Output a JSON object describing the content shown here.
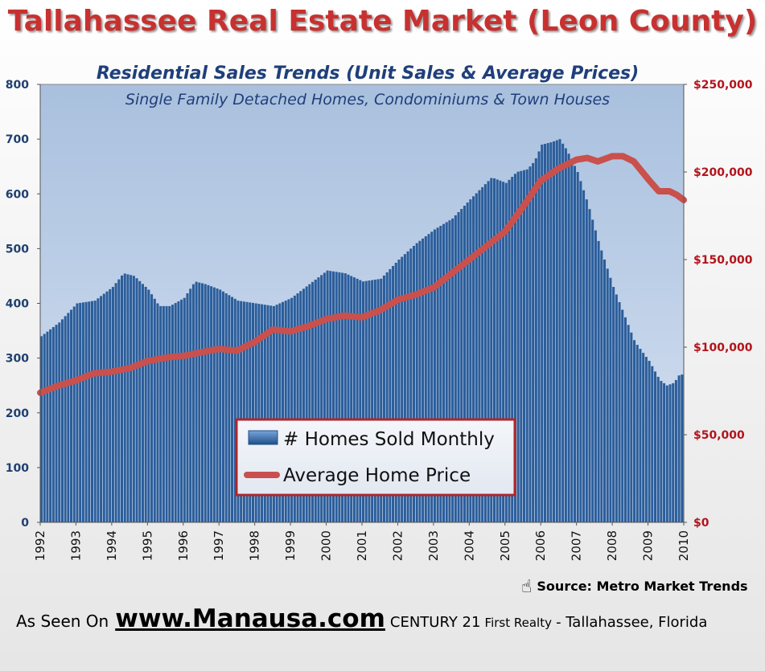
{
  "title": "Tallahassee Real Estate Market (Leon County)",
  "subtitle": "Residential Sales Trends (Unit Sales & Average Prices)",
  "subtitle2": "Single Family Detached Homes, Condominiums & Town Houses",
  "source": "Source:  Metro Market Trends",
  "footer": {
    "as_seen": "As Seen On",
    "site": "www.Manausa.com",
    "brand": "CENTURY 21",
    "brand_small": "First Realty",
    "location": "- Tallahassee,  Florida"
  },
  "colors": {
    "bars": "#2b5d9a",
    "price_line": "#c9504c",
    "left_axis": "#1f3f6e",
    "right_axis": "#b3141c",
    "plot_bg_top": "#a9c0de"
  },
  "chart_data": {
    "type": "bar+line",
    "x_tick_labels": [
      "1992",
      "1993",
      "1994",
      "1995",
      "1996",
      "1997",
      "1998",
      "1999",
      "2000",
      "2001",
      "2002",
      "2003",
      "2004",
      "2005",
      "2006",
      "2007",
      "2008",
      "2009",
      "2010"
    ],
    "left_axis": {
      "ylim": [
        0,
        800
      ],
      "ticks": [
        "0",
        "100",
        "200",
        "300",
        "400",
        "500",
        "600",
        "700",
        "800"
      ]
    },
    "right_axis": {
      "ylim": [
        0,
        250000
      ],
      "ticks": [
        "$0",
        "$50,000",
        "$100,000",
        "$150,000",
        "$200,000",
        "$250,000"
      ]
    },
    "grid": false,
    "legend": {
      "position": "lower-center",
      "entries": [
        "# Homes Sold Monthly",
        "Average Home Price"
      ]
    },
    "series": [
      {
        "name": "# Homes Sold Monthly",
        "axis": "left",
        "kind": "bar",
        "x": [
          1992,
          1992.5,
          1993,
          1993.5,
          1994,
          1994.3,
          1994.6,
          1995,
          1995.3,
          1995.6,
          1996,
          1996.3,
          1996.6,
          1997,
          1997.5,
          1998,
          1998.5,
          1999,
          1999.5,
          2000,
          2000.5,
          2001,
          2001.5,
          2002,
          2002.5,
          2003,
          2003.5,
          2004,
          2004.3,
          2004.6,
          2005,
          2005.3,
          2005.6,
          2005.8,
          2006,
          2006.3,
          2006.5,
          2006.7,
          2007,
          2007.3,
          2007.6,
          2008,
          2008.3,
          2008.6,
          2009,
          2009.3,
          2009.5,
          2009.7,
          2009.85,
          2010
        ],
        "values": [
          340,
          365,
          400,
          405,
          430,
          455,
          450,
          425,
          395,
          395,
          410,
          440,
          435,
          425,
          405,
          400,
          395,
          410,
          435,
          460,
          455,
          440,
          445,
          480,
          510,
          535,
          555,
          590,
          610,
          630,
          620,
          640,
          645,
          660,
          690,
          695,
          700,
          680,
          640,
          580,
          510,
          430,
          380,
          330,
          295,
          260,
          250,
          255,
          270,
          270
        ]
      },
      {
        "name": "Average Home Price",
        "axis": "right",
        "kind": "line",
        "x": [
          1992,
          1992.5,
          1993,
          1993.5,
          1994,
          1994.5,
          1995,
          1995.5,
          1996,
          1996.5,
          1997,
          1997.5,
          1998,
          1998.5,
          1999,
          1999.5,
          2000,
          2000.5,
          2001,
          2001.5,
          2002,
          2002.5,
          2003,
          2003.5,
          2004,
          2004.5,
          2005,
          2005.5,
          2006,
          2006.5,
          2007,
          2007.3,
          2007.6,
          2008,
          2008.3,
          2008.6,
          2009,
          2009.3,
          2009.6,
          2009.8,
          2010
        ],
        "values": [
          74000,
          78000,
          81000,
          85000,
          86000,
          88000,
          92000,
          94000,
          95000,
          97000,
          99000,
          98000,
          103000,
          110000,
          109000,
          112000,
          116000,
          118000,
          117000,
          121000,
          127000,
          130000,
          134000,
          142000,
          150000,
          158000,
          166000,
          180000,
          195000,
          202000,
          207000,
          208000,
          206000,
          209000,
          209000,
          206000,
          196000,
          189000,
          189000,
          187000,
          184000
        ]
      }
    ]
  }
}
